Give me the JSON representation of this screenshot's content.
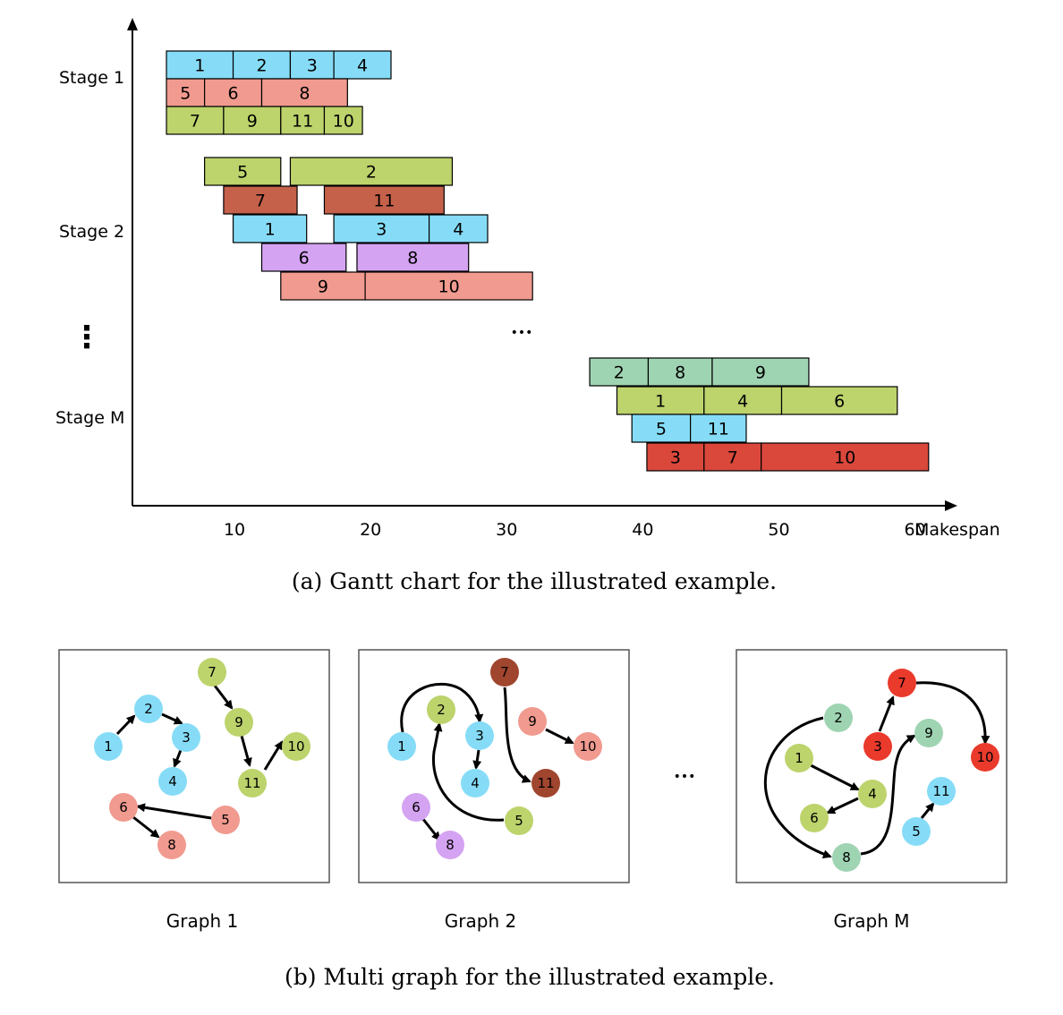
{
  "gantt": {
    "caption": "(a)  Gantt chart for the illustrated example.",
    "x_axis_label": "Makespan",
    "x_ticks": [
      10,
      20,
      30,
      40,
      50,
      60
    ],
    "x_range": [
      2.5,
      62
    ],
    "stage_labels": [
      "Stage 1",
      "Stage 2",
      "Stage M"
    ],
    "vertical_ellipsis": "⋮",
    "horizontal_ellipsis": "•••",
    "colors": {
      "cyan": "#86dcf7",
      "salmon": "#f19a8f",
      "olive": "#bdd36c",
      "brown": "#c5614a",
      "purple": "#d4a3f2",
      "mint": "#9fd4b2",
      "red": "#d9483b"
    },
    "rows": [
      {
        "stage": "Stage 1",
        "color": "cyan",
        "tasks": [
          {
            "job": "1",
            "start": 5.0,
            "end": 9.9
          },
          {
            "job": "2",
            "start": 9.9,
            "end": 14.1
          },
          {
            "job": "3",
            "start": 14.1,
            "end": 17.3
          },
          {
            "job": "4",
            "start": 17.3,
            "end": 21.5
          }
        ]
      },
      {
        "stage": "Stage 1",
        "color": "salmon",
        "tasks": [
          {
            "job": "5",
            "start": 5.0,
            "end": 7.8
          },
          {
            "job": "6",
            "start": 7.8,
            "end": 12.0
          },
          {
            "job": "8",
            "start": 12.0,
            "end": 18.3
          }
        ]
      },
      {
        "stage": "Stage 1",
        "color": "olive",
        "tasks": [
          {
            "job": "7",
            "start": 5.0,
            "end": 9.2
          },
          {
            "job": "9",
            "start": 9.2,
            "end": 13.4
          },
          {
            "job": "11",
            "start": 13.4,
            "end": 16.6
          },
          {
            "job": "10",
            "start": 16.6,
            "end": 19.4
          }
        ]
      },
      {
        "stage": "Stage 2",
        "color": "olive",
        "tasks": [
          {
            "job": "5",
            "start": 7.8,
            "end": 13.4
          },
          {
            "job": "2",
            "start": 14.1,
            "end": 26.0
          }
        ]
      },
      {
        "stage": "Stage 2",
        "color": "brown",
        "tasks": [
          {
            "job": "7",
            "start": 9.2,
            "end": 14.6
          },
          {
            "job": "11",
            "start": 16.6,
            "end": 25.4
          }
        ]
      },
      {
        "stage": "Stage 2",
        "color": "cyan",
        "tasks": [
          {
            "job": "1",
            "start": 9.9,
            "end": 15.3
          },
          {
            "job": "3",
            "start": 17.3,
            "end": 24.3
          },
          {
            "job": "4",
            "start": 24.3,
            "end": 28.6
          }
        ]
      },
      {
        "stage": "Stage 2",
        "color": "purple",
        "tasks": [
          {
            "job": "6",
            "start": 12.0,
            "end": 18.2
          },
          {
            "job": "8",
            "start": 19.0,
            "end": 27.2
          }
        ]
      },
      {
        "stage": "Stage 2",
        "color": "salmon",
        "tasks": [
          {
            "job": "9",
            "start": 13.4,
            "end": 19.6
          },
          {
            "job": "10",
            "start": 19.6,
            "end": 31.9
          }
        ]
      },
      {
        "stage": "Stage M",
        "color": "mint",
        "tasks": [
          {
            "job": "2",
            "start": 36.1,
            "end": 40.4
          },
          {
            "job": "8",
            "start": 40.4,
            "end": 45.1
          },
          {
            "job": "9",
            "start": 45.1,
            "end": 52.2
          }
        ]
      },
      {
        "stage": "Stage M",
        "color": "olive",
        "tasks": [
          {
            "job": "1",
            "start": 38.1,
            "end": 44.5
          },
          {
            "job": "4",
            "start": 44.5,
            "end": 50.2
          },
          {
            "job": "6",
            "start": 50.2,
            "end": 58.7
          }
        ]
      },
      {
        "stage": "Stage M",
        "color": "cyan",
        "tasks": [
          {
            "job": "5",
            "start": 39.2,
            "end": 43.5
          },
          {
            "job": "11",
            "start": 43.5,
            "end": 47.6
          }
        ]
      },
      {
        "stage": "Stage M",
        "color": "red",
        "tasks": [
          {
            "job": "3",
            "start": 40.3,
            "end": 44.5
          },
          {
            "job": "7",
            "start": 44.5,
            "end": 48.7
          },
          {
            "job": "10",
            "start": 48.7,
            "end": 61.0
          }
        ]
      }
    ]
  },
  "graphs": {
    "caption": "(b)  Multi graph for the illustrated example.",
    "ellipsis": "•••",
    "panels": [
      {
        "label": "Graph 1",
        "nodes": [
          {
            "id": "1",
            "color": "#86dcf7"
          },
          {
            "id": "2",
            "color": "#86dcf7"
          },
          {
            "id": "3",
            "color": "#86dcf7"
          },
          {
            "id": "4",
            "color": "#86dcf7"
          },
          {
            "id": "5",
            "color": "#f19a8f"
          },
          {
            "id": "6",
            "color": "#f19a8f"
          },
          {
            "id": "8",
            "color": "#f19a8f"
          },
          {
            "id": "7",
            "color": "#bdd36c"
          },
          {
            "id": "9",
            "color": "#bdd36c"
          },
          {
            "id": "11",
            "color": "#bdd36c"
          },
          {
            "id": "10",
            "color": "#bdd36c"
          }
        ]
      },
      {
        "label": "Graph 2",
        "nodes": [
          {
            "id": "1",
            "color": "#86dcf7"
          },
          {
            "id": "2",
            "color": "#bdd36c"
          },
          {
            "id": "3",
            "color": "#86dcf7"
          },
          {
            "id": "4",
            "color": "#86dcf7"
          },
          {
            "id": "5",
            "color": "#bdd36c"
          },
          {
            "id": "6",
            "color": "#d4a3f2"
          },
          {
            "id": "8",
            "color": "#d4a3f2"
          },
          {
            "id": "7",
            "color": "#a0452e"
          },
          {
            "id": "11",
            "color": "#a0452e"
          },
          {
            "id": "9",
            "color": "#f19a8f"
          },
          {
            "id": "10",
            "color": "#f19a8f"
          }
        ]
      },
      {
        "label": "Graph M",
        "nodes": [
          {
            "id": "2",
            "color": "#9fd4b2"
          },
          {
            "id": "7",
            "color": "#ea3a2c"
          },
          {
            "id": "3",
            "color": "#ea3a2c"
          },
          {
            "id": "10",
            "color": "#ea3a2c"
          },
          {
            "id": "9",
            "color": "#9fd4b2"
          },
          {
            "id": "1",
            "color": "#bdd36c"
          },
          {
            "id": "4",
            "color": "#bdd36c"
          },
          {
            "id": "6",
            "color": "#bdd36c"
          },
          {
            "id": "11",
            "color": "#86dcf7"
          },
          {
            "id": "5",
            "color": "#86dcf7"
          },
          {
            "id": "8",
            "color": "#9fd4b2"
          }
        ]
      }
    ]
  }
}
